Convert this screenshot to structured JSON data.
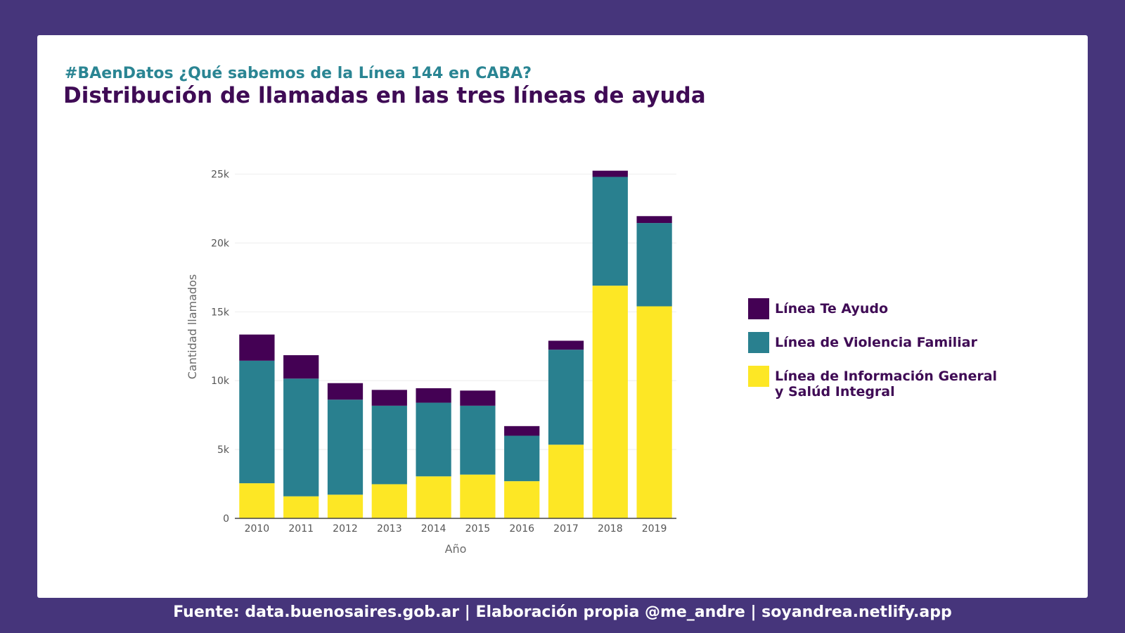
{
  "header": {
    "subtitle": "#BAenDatos ¿Qué sabemos de la Línea 144 en CABA?",
    "title": "Distribución de llamadas en las tres líneas de ayuda"
  },
  "footer": {
    "text": "Fuente: data.buenosaires.gob.ar  | Elaboración propia @me_andre | soyandrea.netlify.app"
  },
  "colors": {
    "background": "#46357b",
    "te_ayudo": "#440154",
    "violencia_familiar": "#29808f",
    "informacion_general": "#fde725"
  },
  "chart_data": {
    "type": "bar",
    "stacked": true,
    "xlabel": "Año",
    "ylabel": "Cantidad llamados",
    "ylim": [
      0,
      26000
    ],
    "yticks": [
      0,
      5000,
      10000,
      15000,
      20000,
      25000
    ],
    "ytick_labels": [
      "0",
      "5k",
      "10k",
      "15k",
      "20k",
      "25k"
    ],
    "grid": true,
    "legend_position": "right",
    "categories": [
      "2010",
      "2011",
      "2012",
      "2013",
      "2014",
      "2015",
      "2016",
      "2017",
      "2018",
      "2019"
    ],
    "series": [
      {
        "name": "Línea de Información General\ny Salúd Integral",
        "color": "#fde725",
        "values": [
          2550,
          1600,
          1720,
          2480,
          3050,
          3180,
          2700,
          5350,
          16900,
          15400
        ]
      },
      {
        "name": "Línea de Violencia Familiar",
        "color": "#29808f",
        "values": [
          8900,
          8550,
          6900,
          5700,
          5350,
          5000,
          3300,
          6900,
          7900,
          6050
        ]
      },
      {
        "name": "Línea Te Ayudo",
        "color": "#440154",
        "values": [
          1900,
          1700,
          1200,
          1150,
          1050,
          1100,
          700,
          650,
          450,
          500
        ]
      }
    ],
    "legend_order": [
      2,
      1,
      0
    ]
  }
}
